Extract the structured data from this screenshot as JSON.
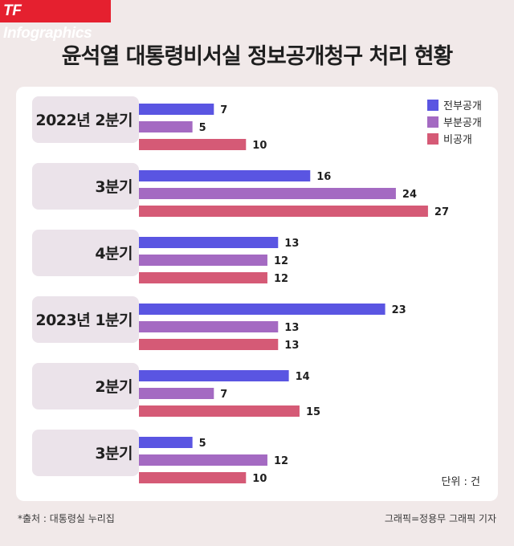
{
  "brand": "TF Infographics",
  "unit_label": "단위 : 건",
  "source": "*출처 : 대통령실 누리집",
  "credit": "그래픽=정용무 그래픽 기자",
  "colors": {
    "background": "#f1e9e9",
    "brand_red": "#e5202f",
    "category_panel": "#ebe3ea",
    "full": "#5a55e2",
    "partial": "#a46ac2",
    "non": "#d55a76"
  },
  "chart_data": {
    "type": "bar",
    "orientation": "horizontal",
    "title": "윤석열 대통령비서실 정보공개청구 처리 현황",
    "categories": [
      "2022년 2분기",
      "3분기",
      "4분기",
      "2023년 1분기",
      "2분기",
      "3분기"
    ],
    "series": [
      {
        "name": "전부공개",
        "color": "#5a55e2",
        "values": [
          7,
          16,
          13,
          23,
          14,
          5
        ]
      },
      {
        "name": "부분공개",
        "color": "#a46ac2",
        "values": [
          5,
          24,
          12,
          13,
          7,
          12
        ]
      },
      {
        "name": "비공개",
        "color": "#d55a76",
        "values": [
          10,
          27,
          12,
          13,
          15,
          10
        ]
      }
    ],
    "xlim": [
      0,
      27
    ],
    "xlabel": "",
    "ylabel": "",
    "legend": "top-right",
    "grid": false,
    "unit": "건"
  }
}
